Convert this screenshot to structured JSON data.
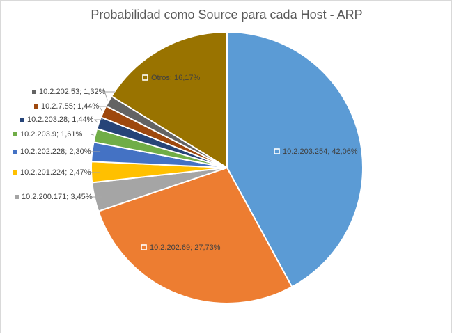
{
  "chart_data": {
    "type": "pie",
    "title": "Probabilidad como Source para cada Host - ARP",
    "slices": [
      {
        "label": "10.2.203.254; 42,06%",
        "value": 42.06,
        "color": "#5b9bd5"
      },
      {
        "label": "10.2.202.69; 27,73%",
        "value": 27.73,
        "color": "#ed7d31"
      },
      {
        "label": "10.2.200.171; 3,45%",
        "value": 3.45,
        "color": "#a5a5a5"
      },
      {
        "label": "10.2.201.224; 2,47%",
        "value": 2.47,
        "color": "#ffc000"
      },
      {
        "label": "10.2.202.228; 2,30%",
        "value": 2.3,
        "color": "#4472c4"
      },
      {
        "label": "10.2.203.9; 1,61%",
        "value": 1.61,
        "color": "#70ad47"
      },
      {
        "label": "10.2.203.28; 1,44%",
        "value": 1.44,
        "color": "#264478"
      },
      {
        "label": "10.2.7.55; 1,44%",
        "value": 1.44,
        "color": "#9e480e"
      },
      {
        "label": "10.2.202.53; 1,32%",
        "value": 1.32,
        "color": "#636363"
      },
      {
        "label": "Otros; 16,17%",
        "value": 16.17,
        "color": "#997300"
      }
    ]
  }
}
